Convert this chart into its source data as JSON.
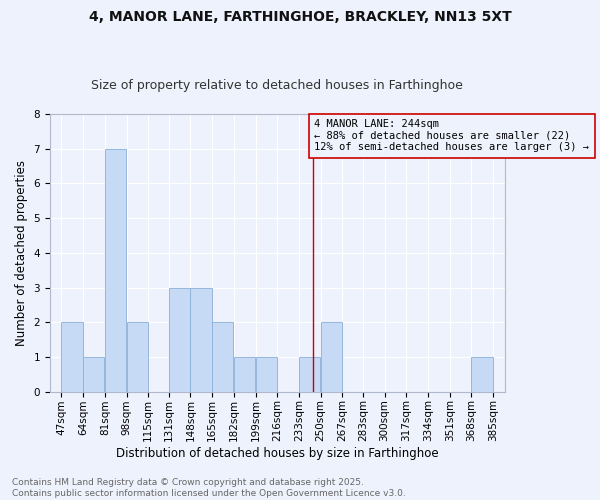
{
  "title": "4, MANOR LANE, FARTHINGHOE, BRACKLEY, NN13 5XT",
  "subtitle": "Size of property relative to detached houses in Farthinghoe",
  "xlabel": "Distribution of detached houses by size in Farthinghoe",
  "ylabel": "Number of detached properties",
  "bin_labels": [
    "47sqm",
    "64sqm",
    "81sqm",
    "98sqm",
    "115sqm",
    "131sqm",
    "148sqm",
    "165sqm",
    "182sqm",
    "199sqm",
    "216sqm",
    "233sqm",
    "250sqm",
    "267sqm",
    "283sqm",
    "300sqm",
    "317sqm",
    "334sqm",
    "351sqm",
    "368sqm",
    "385sqm"
  ],
  "bins_left": [
    47,
    64,
    81,
    98,
    115,
    131,
    148,
    165,
    182,
    199,
    216,
    233,
    250,
    267,
    283,
    300,
    317,
    334,
    351,
    368
  ],
  "bin_width": 17,
  "counts": [
    2,
    1,
    7,
    2,
    0,
    3,
    3,
    2,
    1,
    1,
    0,
    1,
    2,
    0,
    0,
    0,
    0,
    0,
    0,
    1
  ],
  "bar_color": "#c6d9f5",
  "bar_edgecolor": "#8ab0d8",
  "vline_x": 244,
  "vline_color": "#cc0000",
  "annotation_text": "4 MANOR LANE: 244sqm\n← 88% of detached houses are smaller (22)\n12% of semi-detached houses are larger (3) →",
  "annotation_box_edgecolor": "#cc0000",
  "annotation_box_facecolor": "#eef2fc",
  "ylim": [
    0,
    8
  ],
  "yticks": [
    0,
    1,
    2,
    3,
    4,
    5,
    6,
    7,
    8
  ],
  "xlim_left": 38,
  "xlim_right": 394,
  "background_color": "#eef2fc",
  "grid_color": "#ffffff",
  "footer_text": "Contains HM Land Registry data © Crown copyright and database right 2025.\nContains public sector information licensed under the Open Government Licence v3.0.",
  "title_fontsize": 10,
  "subtitle_fontsize": 9,
  "axis_label_fontsize": 8.5,
  "tick_fontsize": 7.5,
  "annotation_fontsize": 7.5,
  "footer_fontsize": 6.5
}
